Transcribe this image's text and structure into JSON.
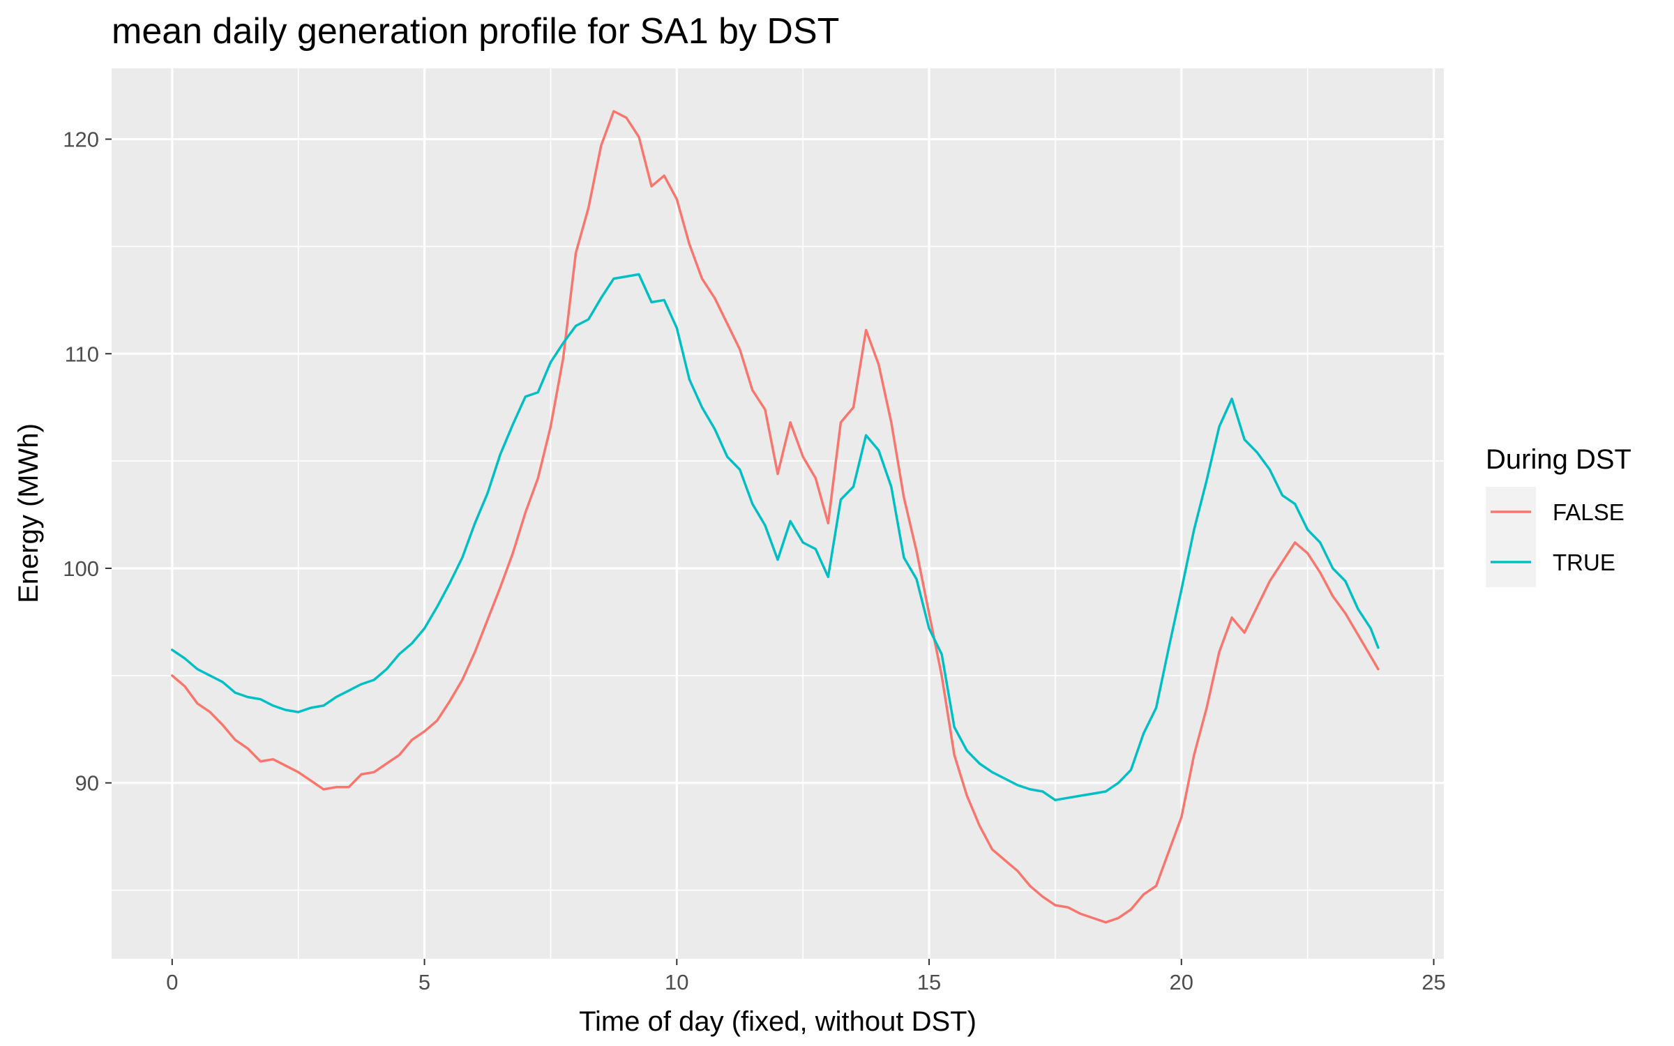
{
  "chart_data": {
    "type": "line",
    "title": "mean daily generation profile for SA1 by DST",
    "xlabel": "Time of day (fixed, without DST)",
    "ylabel": "Energy (MWh)",
    "xlim": [
      -1.2,
      25.2
    ],
    "ylim": [
      81.8,
      123.3
    ],
    "x_ticks": [
      0,
      5,
      10,
      15,
      20,
      25
    ],
    "x_tick_labels": [
      "0",
      "5",
      "10",
      "15",
      "20",
      "25"
    ],
    "y_ticks": [
      90,
      100,
      110,
      120
    ],
    "y_tick_labels": [
      "90",
      "100",
      "110",
      "120"
    ],
    "grid": true,
    "legend": {
      "title": "During DST",
      "position": "right"
    },
    "series": [
      {
        "name": "FALSE",
        "color": "#F8766D",
        "points": [
          [
            0,
            95.0
          ],
          [
            0.25,
            94.5
          ],
          [
            0.5,
            93.7
          ],
          [
            0.75,
            93.3
          ],
          [
            1,
            92.7
          ],
          [
            1.25,
            92.0
          ],
          [
            1.5,
            91.6
          ],
          [
            1.75,
            91.0
          ],
          [
            2,
            91.1
          ],
          [
            2.25,
            90.8
          ],
          [
            2.5,
            90.5
          ],
          [
            2.75,
            90.1
          ],
          [
            3,
            89.7
          ],
          [
            3.25,
            89.8
          ],
          [
            3.5,
            89.8
          ],
          [
            3.75,
            90.4
          ],
          [
            4,
            90.5
          ],
          [
            4.25,
            90.9
          ],
          [
            4.5,
            91.3
          ],
          [
            4.75,
            92.0
          ],
          [
            5,
            92.4
          ],
          [
            5.25,
            92.9
          ],
          [
            5.5,
            93.8
          ],
          [
            5.75,
            94.8
          ],
          [
            6,
            96.1
          ],
          [
            6.25,
            97.6
          ],
          [
            6.5,
            99.1
          ],
          [
            6.75,
            100.7
          ],
          [
            7,
            102.6
          ],
          [
            7.25,
            104.2
          ],
          [
            7.5,
            106.6
          ],
          [
            7.75,
            109.8
          ],
          [
            8,
            114.7
          ],
          [
            8.25,
            116.8
          ],
          [
            8.5,
            119.7
          ],
          [
            8.75,
            121.3
          ],
          [
            9,
            121.0
          ],
          [
            9.25,
            120.1
          ],
          [
            9.5,
            117.8
          ],
          [
            9.75,
            118.3
          ],
          [
            10,
            117.2
          ],
          [
            10.25,
            115.1
          ],
          [
            10.5,
            113.5
          ],
          [
            10.75,
            112.6
          ],
          [
            11,
            111.4
          ],
          [
            11.25,
            110.2
          ],
          [
            11.5,
            108.3
          ],
          [
            11.75,
            107.4
          ],
          [
            12,
            104.4
          ],
          [
            12.25,
            106.8
          ],
          [
            12.5,
            105.2
          ],
          [
            12.75,
            104.2
          ],
          [
            13,
            102.1
          ],
          [
            13.25,
            106.8
          ],
          [
            13.5,
            107.5
          ],
          [
            13.75,
            111.1
          ],
          [
            14,
            109.5
          ],
          [
            14.25,
            106.8
          ],
          [
            14.5,
            103.3
          ],
          [
            14.75,
            100.8
          ],
          [
            15,
            97.9
          ],
          [
            15.25,
            95.0
          ],
          [
            15.5,
            91.3
          ],
          [
            15.75,
            89.4
          ],
          [
            16,
            88.0
          ],
          [
            16.25,
            86.9
          ],
          [
            16.5,
            86.4
          ],
          [
            16.75,
            85.9
          ],
          [
            17,
            85.2
          ],
          [
            17.25,
            84.7
          ],
          [
            17.5,
            84.3
          ],
          [
            17.75,
            84.2
          ],
          [
            18,
            83.9
          ],
          [
            18.25,
            83.7
          ],
          [
            18.5,
            83.5
          ],
          [
            18.75,
            83.7
          ],
          [
            19,
            84.1
          ],
          [
            19.25,
            84.8
          ],
          [
            19.5,
            85.2
          ],
          [
            19.75,
            86.8
          ],
          [
            20,
            88.4
          ],
          [
            20.25,
            91.3
          ],
          [
            20.5,
            93.5
          ],
          [
            20.75,
            96.1
          ],
          [
            21,
            97.7
          ],
          [
            21.25,
            97.0
          ],
          [
            21.5,
            98.2
          ],
          [
            21.75,
            99.4
          ],
          [
            22,
            100.3
          ],
          [
            22.25,
            101.2
          ],
          [
            22.5,
            100.7
          ],
          [
            22.75,
            99.8
          ],
          [
            23,
            98.7
          ],
          [
            23.25,
            97.9
          ],
          [
            23.5,
            96.9
          ],
          [
            23.75,
            95.9
          ],
          [
            23.9,
            95.3
          ]
        ]
      },
      {
        "name": "TRUE",
        "color": "#00BFC4",
        "points": [
          [
            0,
            96.2
          ],
          [
            0.25,
            95.8
          ],
          [
            0.5,
            95.3
          ],
          [
            0.75,
            95.0
          ],
          [
            1,
            94.7
          ],
          [
            1.25,
            94.2
          ],
          [
            1.5,
            94.0
          ],
          [
            1.75,
            93.9
          ],
          [
            2,
            93.6
          ],
          [
            2.25,
            93.4
          ],
          [
            2.5,
            93.3
          ],
          [
            2.75,
            93.5
          ],
          [
            3,
            93.6
          ],
          [
            3.25,
            94.0
          ],
          [
            3.5,
            94.3
          ],
          [
            3.75,
            94.6
          ],
          [
            4,
            94.8
          ],
          [
            4.25,
            95.3
          ],
          [
            4.5,
            96.0
          ],
          [
            4.75,
            96.5
          ],
          [
            5,
            97.2
          ],
          [
            5.25,
            98.2
          ],
          [
            5.5,
            99.3
          ],
          [
            5.75,
            100.5
          ],
          [
            6,
            102.1
          ],
          [
            6.25,
            103.5
          ],
          [
            6.5,
            105.3
          ],
          [
            6.75,
            106.7
          ],
          [
            7,
            108.0
          ],
          [
            7.25,
            108.2
          ],
          [
            7.5,
            109.6
          ],
          [
            7.75,
            110.5
          ],
          [
            8,
            111.3
          ],
          [
            8.25,
            111.6
          ],
          [
            8.5,
            112.6
          ],
          [
            8.75,
            113.5
          ],
          [
            9,
            113.6
          ],
          [
            9.25,
            113.7
          ],
          [
            9.5,
            112.4
          ],
          [
            9.75,
            112.5
          ],
          [
            10,
            111.2
          ],
          [
            10.25,
            108.8
          ],
          [
            10.5,
            107.5
          ],
          [
            10.75,
            106.5
          ],
          [
            11,
            105.2
          ],
          [
            11.25,
            104.6
          ],
          [
            11.5,
            103.0
          ],
          [
            11.75,
            102.0
          ],
          [
            12,
            100.4
          ],
          [
            12.25,
            102.2
          ],
          [
            12.5,
            101.2
          ],
          [
            12.75,
            100.9
          ],
          [
            13,
            99.6
          ],
          [
            13.25,
            103.2
          ],
          [
            13.5,
            103.8
          ],
          [
            13.75,
            106.2
          ],
          [
            14,
            105.5
          ],
          [
            14.25,
            103.8
          ],
          [
            14.5,
            100.5
          ],
          [
            14.75,
            99.5
          ],
          [
            15,
            97.2
          ],
          [
            15.25,
            96.0
          ],
          [
            15.5,
            92.6
          ],
          [
            15.75,
            91.5
          ],
          [
            16,
            90.9
          ],
          [
            16.25,
            90.5
          ],
          [
            16.5,
            90.2
          ],
          [
            16.75,
            89.9
          ],
          [
            17,
            89.7
          ],
          [
            17.25,
            89.6
          ],
          [
            17.5,
            89.2
          ],
          [
            17.75,
            89.3
          ],
          [
            18,
            89.4
          ],
          [
            18.25,
            89.5
          ],
          [
            18.5,
            89.6
          ],
          [
            18.75,
            90.0
          ],
          [
            19,
            90.6
          ],
          [
            19.25,
            92.3
          ],
          [
            19.5,
            93.5
          ],
          [
            19.75,
            96.3
          ],
          [
            20,
            99.0
          ],
          [
            20.25,
            101.8
          ],
          [
            20.5,
            104.1
          ],
          [
            20.75,
            106.6
          ],
          [
            21,
            107.9
          ],
          [
            21.25,
            106.0
          ],
          [
            21.5,
            105.4
          ],
          [
            21.75,
            104.6
          ],
          [
            22,
            103.4
          ],
          [
            22.25,
            103.0
          ],
          [
            22.5,
            101.8
          ],
          [
            22.75,
            101.2
          ],
          [
            23,
            100.0
          ],
          [
            23.25,
            99.4
          ],
          [
            23.5,
            98.1
          ],
          [
            23.75,
            97.2
          ],
          [
            23.9,
            96.3
          ]
        ]
      }
    ]
  }
}
